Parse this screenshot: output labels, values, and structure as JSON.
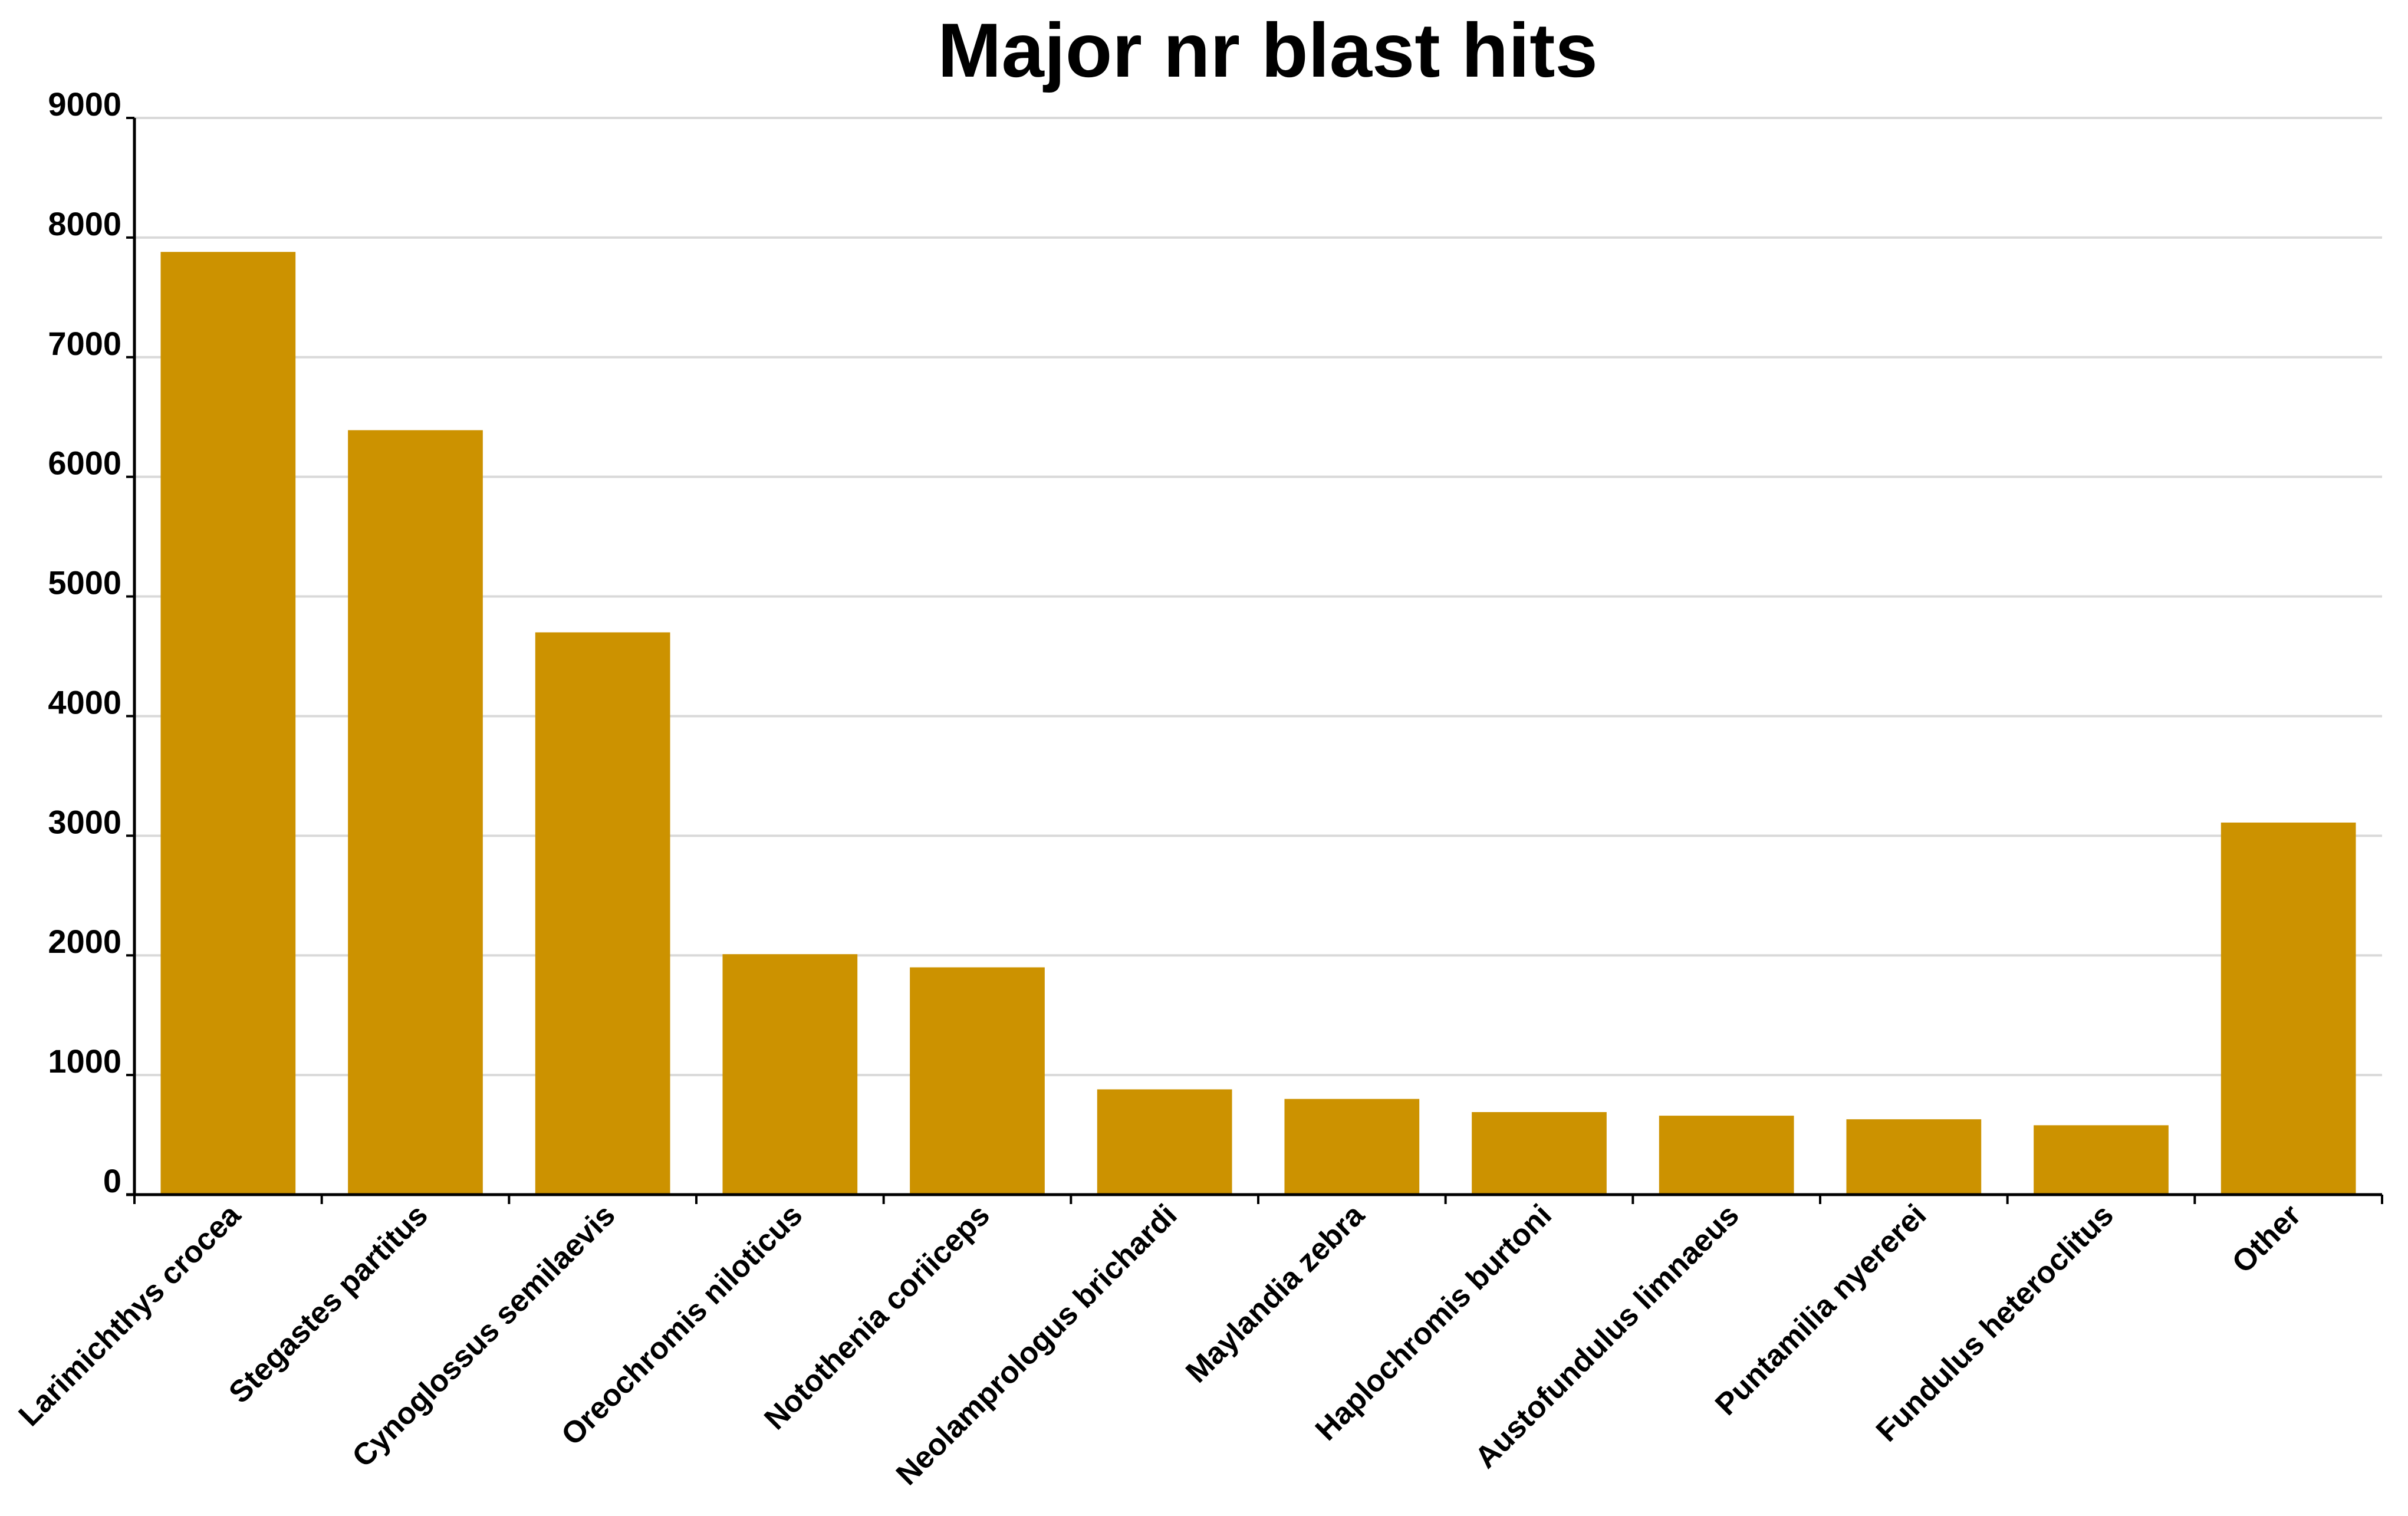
{
  "chart_data": {
    "type": "bar",
    "title": "Major nr blast hits",
    "xlabel": "",
    "ylabel": "",
    "ylim": [
      0,
      9000
    ],
    "yticks": [
      0,
      1000,
      2000,
      3000,
      4000,
      5000,
      6000,
      7000,
      8000,
      9000
    ],
    "ytick_labels": [
      "0",
      "1000",
      "2000",
      "3000",
      "4000",
      "5000",
      "6000",
      "7000",
      "8000",
      "9000"
    ],
    "grid": "horizontal",
    "legend": "none",
    "bar_color": "#cc9200",
    "categories": [
      "Larimichthys crocea",
      "Stegastes partitus",
      "Cynoglossus semilaevis",
      "Oreochromis niloticus",
      "Notothenia coriiceps",
      "Neolamprologus brichardi",
      "Maylandia zebra",
      "Haplochromis burtoni",
      "Austofundulus limnaeus",
      "Puntamilia nyererei",
      "Fundulus heteroclitus",
      "Other"
    ],
    "values": [
      7880,
      6390,
      4700,
      2010,
      1900,
      880,
      800,
      690,
      660,
      630,
      580,
      3110
    ]
  }
}
